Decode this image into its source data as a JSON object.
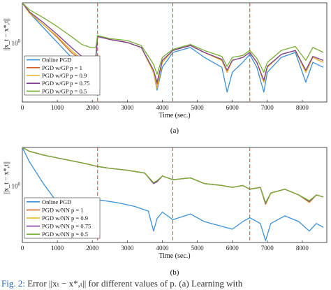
{
  "chart_data": [
    {
      "type": "line",
      "panel_label": "(a)",
      "xlabel": "Time (sec.)",
      "ylabel": "||x_t − x*,t||",
      "xlim": [
        0,
        8700
      ],
      "xticks": [
        0,
        1000,
        2000,
        3000,
        4000,
        5000,
        6000,
        7000,
        8000
      ],
      "ytick_label": "10^0",
      "vlines": [
        2150,
        4300,
        6500
      ],
      "legend_position": "lower-left",
      "grid": false,
      "series": [
        {
          "name": "Online PGD",
          "color": "#3c8fd6",
          "x": [
            0,
            200,
            600,
            1000,
            1400,
            1700,
            1950,
            2100,
            2150,
            2500,
            3000,
            3400,
            3750,
            3850,
            4000,
            4300,
            4800,
            5200,
            5700,
            5850,
            6000,
            6300,
            6500,
            6700,
            6900,
            7000,
            7400,
            7800,
            8100,
            8300,
            8600
          ],
          "y": [
            1.0,
            0.9,
            0.75,
            0.6,
            0.45,
            0.38,
            0.36,
            0.4,
            0.66,
            0.63,
            0.6,
            0.55,
            0.3,
            0.12,
            0.35,
            0.5,
            0.55,
            0.45,
            0.35,
            0.1,
            0.3,
            0.4,
            0.48,
            0.35,
            0.1,
            0.3,
            0.45,
            0.5,
            0.2,
            0.4,
            0.35
          ]
        },
        {
          "name": "PGD w/GP p = 1",
          "color": "#d2612b",
          "x": [
            0,
            200,
            600,
            1000,
            1400,
            1700,
            1950,
            2100,
            2150,
            2500,
            3000,
            3400,
            3750,
            3850,
            4000,
            4300,
            4800,
            5200,
            5700,
            5850,
            6000,
            6300,
            6500,
            6700,
            6900,
            7000,
            7400,
            7800,
            8100,
            8300,
            8600
          ],
          "y": [
            1.0,
            0.9,
            0.78,
            0.65,
            0.5,
            0.42,
            0.4,
            0.43,
            0.66,
            0.63,
            0.6,
            0.55,
            0.3,
            0.18,
            0.4,
            0.52,
            0.57,
            0.5,
            0.42,
            0.3,
            0.42,
            0.45,
            0.5,
            0.4,
            0.2,
            0.35,
            0.48,
            0.52,
            0.3,
            0.45,
            0.4
          ]
        },
        {
          "name": "PGD w/GP p = 0.9",
          "color": "#e8b424",
          "x": [
            0,
            200,
            600,
            1000,
            1400,
            1700,
            1950,
            2100,
            2150,
            2500,
            3000,
            3400,
            3750,
            3850,
            4000,
            4300,
            4800,
            5200,
            5700,
            5850,
            6000,
            6300,
            6500,
            6700,
            6900,
            7000,
            7400,
            7800,
            8100,
            8300,
            8600
          ],
          "y": [
            1.0,
            0.9,
            0.78,
            0.66,
            0.52,
            0.43,
            0.41,
            0.44,
            0.66,
            0.63,
            0.6,
            0.55,
            0.3,
            0.14,
            0.4,
            0.52,
            0.57,
            0.5,
            0.42,
            0.3,
            0.42,
            0.45,
            0.5,
            0.4,
            0.2,
            0.35,
            0.48,
            0.52,
            0.3,
            0.45,
            0.4
          ]
        },
        {
          "name": "PGD w/GP p = 0.75",
          "color": "#7c3f95",
          "x": [
            0,
            200,
            600,
            1000,
            1400,
            1700,
            1950,
            2100,
            2150,
            2500,
            3000,
            3400,
            3750,
            3850,
            4000,
            4300,
            4800,
            5200,
            5700,
            5850,
            6000,
            6300,
            6500,
            6700,
            6900,
            7000,
            7400,
            7800,
            8100,
            8300,
            8600
          ],
          "y": [
            1.0,
            0.91,
            0.8,
            0.68,
            0.55,
            0.46,
            0.44,
            0.46,
            0.66,
            0.63,
            0.6,
            0.55,
            0.32,
            0.2,
            0.42,
            0.52,
            0.57,
            0.5,
            0.43,
            0.32,
            0.42,
            0.45,
            0.5,
            0.4,
            0.22,
            0.36,
            0.48,
            0.52,
            0.32,
            0.46,
            0.42
          ]
        },
        {
          "name": "PGD w/GP p = 0.5",
          "color": "#77ad35",
          "x": [
            0,
            200,
            600,
            1000,
            1400,
            1700,
            1950,
            2100,
            2150,
            2500,
            3000,
            3400,
            3750,
            3850,
            4000,
            4300,
            4800,
            5200,
            5700,
            5850,
            6000,
            6300,
            6500,
            6700,
            6900,
            7000,
            7400,
            7800,
            8100,
            8300,
            8600
          ],
          "y": [
            1.0,
            0.93,
            0.85,
            0.76,
            0.66,
            0.58,
            0.55,
            0.55,
            0.67,
            0.64,
            0.62,
            0.57,
            0.38,
            0.28,
            0.45,
            0.53,
            0.58,
            0.52,
            0.46,
            0.36,
            0.45,
            0.47,
            0.52,
            0.44,
            0.3,
            0.4,
            0.52,
            0.56,
            0.42,
            0.55,
            0.5
          ]
        }
      ]
    },
    {
      "type": "line",
      "panel_label": "(b)",
      "xlabel": "Time (sec.)",
      "ylabel": "||x_t − x*,t||",
      "xlim": [
        0,
        8700
      ],
      "xticks": [
        0,
        1000,
        2000,
        3000,
        4000,
        5000,
        6000,
        7000,
        8000
      ],
      "ytick_label": "10^0",
      "vlines": [
        2150,
        4300,
        6500
      ],
      "legend_position": "lower-left",
      "grid": false,
      "series": [
        {
          "name": "Online PGD",
          "color": "#3c8fd6",
          "x": [
            0,
            200,
            600,
            1000,
            1300,
            1600,
            1900,
            2100,
            2150,
            2700,
            3200,
            3600,
            3750,
            3850,
            4000,
            4300,
            4800,
            5200,
            5600,
            6000,
            6300,
            6500,
            6800,
            6950,
            7100,
            7500,
            7900,
            8200,
            8400,
            8600
          ],
          "y": [
            1.0,
            0.85,
            0.62,
            0.42,
            0.32,
            0.3,
            0.3,
            0.32,
            0.45,
            0.42,
            0.38,
            0.33,
            0.12,
            0.25,
            0.32,
            0.24,
            0.3,
            0.22,
            0.18,
            0.14,
            0.22,
            0.26,
            0.2,
            0.02,
            0.2,
            0.28,
            0.22,
            0.12,
            0.2,
            0.16
          ]
        },
        {
          "name": "PGD w/NN p = 1",
          "color": "#d2612b",
          "x": [
            0,
            200,
            600,
            1000,
            1400,
            1800,
            2150,
            2500,
            3000,
            3500,
            3750,
            3850,
            4000,
            4300,
            4800,
            5200,
            5700,
            6000,
            6300,
            6500,
            6800,
            6950,
            7100,
            7500,
            7900,
            8200,
            8400,
            8600
          ],
          "y": [
            1.0,
            0.96,
            0.92,
            0.89,
            0.86,
            0.83,
            0.8,
            0.78,
            0.76,
            0.73,
            0.62,
            0.64,
            0.7,
            0.66,
            0.68,
            0.62,
            0.6,
            0.58,
            0.6,
            0.56,
            0.58,
            0.4,
            0.52,
            0.56,
            0.5,
            0.42,
            0.5,
            0.48
          ]
        },
        {
          "name": "PGD w/NN p = 0.9",
          "color": "#e8b424",
          "x": [
            0,
            200,
            600,
            1000,
            1400,
            1800,
            2150,
            2500,
            3000,
            3500,
            3750,
            3850,
            4000,
            4300,
            4800,
            5200,
            5700,
            6000,
            6300,
            6500,
            6800,
            6950,
            7100,
            7500,
            7900,
            8200,
            8400,
            8600
          ],
          "y": [
            1.0,
            0.96,
            0.92,
            0.89,
            0.86,
            0.83,
            0.8,
            0.78,
            0.76,
            0.73,
            0.62,
            0.64,
            0.7,
            0.66,
            0.68,
            0.62,
            0.6,
            0.58,
            0.6,
            0.56,
            0.58,
            0.4,
            0.52,
            0.56,
            0.5,
            0.42,
            0.5,
            0.48
          ]
        },
        {
          "name": "PGD w/NN p = 0.75",
          "color": "#7c3f95",
          "x": [
            0,
            200,
            600,
            1000,
            1400,
            1800,
            2150,
            2500,
            3000,
            3500,
            3750,
            3850,
            4000,
            4300,
            4800,
            5200,
            5700,
            6000,
            6300,
            6500,
            6800,
            6950,
            7100,
            7500,
            7900,
            8200,
            8400,
            8600
          ],
          "y": [
            1.0,
            0.96,
            0.92,
            0.89,
            0.86,
            0.83,
            0.8,
            0.78,
            0.76,
            0.73,
            0.62,
            0.64,
            0.7,
            0.66,
            0.68,
            0.62,
            0.6,
            0.58,
            0.6,
            0.56,
            0.58,
            0.41,
            0.52,
            0.56,
            0.5,
            0.43,
            0.5,
            0.48
          ]
        },
        {
          "name": "PGD w/NN p = 0.5",
          "color": "#77ad35",
          "x": [
            0,
            200,
            600,
            1000,
            1400,
            1800,
            2150,
            2500,
            3000,
            3500,
            3750,
            3850,
            4000,
            4300,
            4800,
            5200,
            5700,
            6000,
            6300,
            6500,
            6800,
            6950,
            7100,
            7500,
            7900,
            8200,
            8400,
            8600
          ],
          "y": [
            1.0,
            0.96,
            0.92,
            0.89,
            0.86,
            0.83,
            0.8,
            0.78,
            0.76,
            0.73,
            0.63,
            0.65,
            0.7,
            0.66,
            0.68,
            0.62,
            0.6,
            0.58,
            0.6,
            0.56,
            0.58,
            0.42,
            0.52,
            0.56,
            0.5,
            0.44,
            0.5,
            0.48
          ]
        }
      ]
    }
  ],
  "caption": {
    "fig_label": "Fig. 2:",
    "text": "Error ||xₜ − x*,ₜ|| for different values of p. (a) Learning with"
  }
}
